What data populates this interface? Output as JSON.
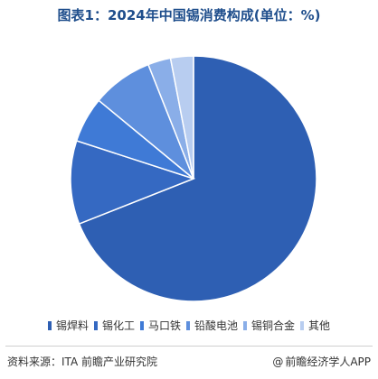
{
  "title": "图表1：2024年中国锡消费构成(单位：%)",
  "source": "资料来源：ITA 前瞻产业研究院",
  "brand": {
    "symbol": "@",
    "text": "前瞻经济学人APP"
  },
  "chart_data": {
    "type": "pie",
    "title": "图表1：2024年中国锡消费构成(单位：%)",
    "legend_position": "bottom",
    "slices": [
      {
        "name": "锡焊料",
        "value": 69,
        "color": "#2e5fb3"
      },
      {
        "name": "锡化工",
        "value": 11,
        "color": "#3569c2"
      },
      {
        "name": "马口铁",
        "value": 6,
        "color": "#3f7ad6"
      },
      {
        "name": "铅酸电池",
        "value": 8,
        "color": "#5e8fdd"
      },
      {
        "name": "锡铜合金",
        "value": 3,
        "color": "#8aaee8"
      },
      {
        "name": "其他",
        "value": 3,
        "color": "#b8cdf0"
      }
    ]
  }
}
